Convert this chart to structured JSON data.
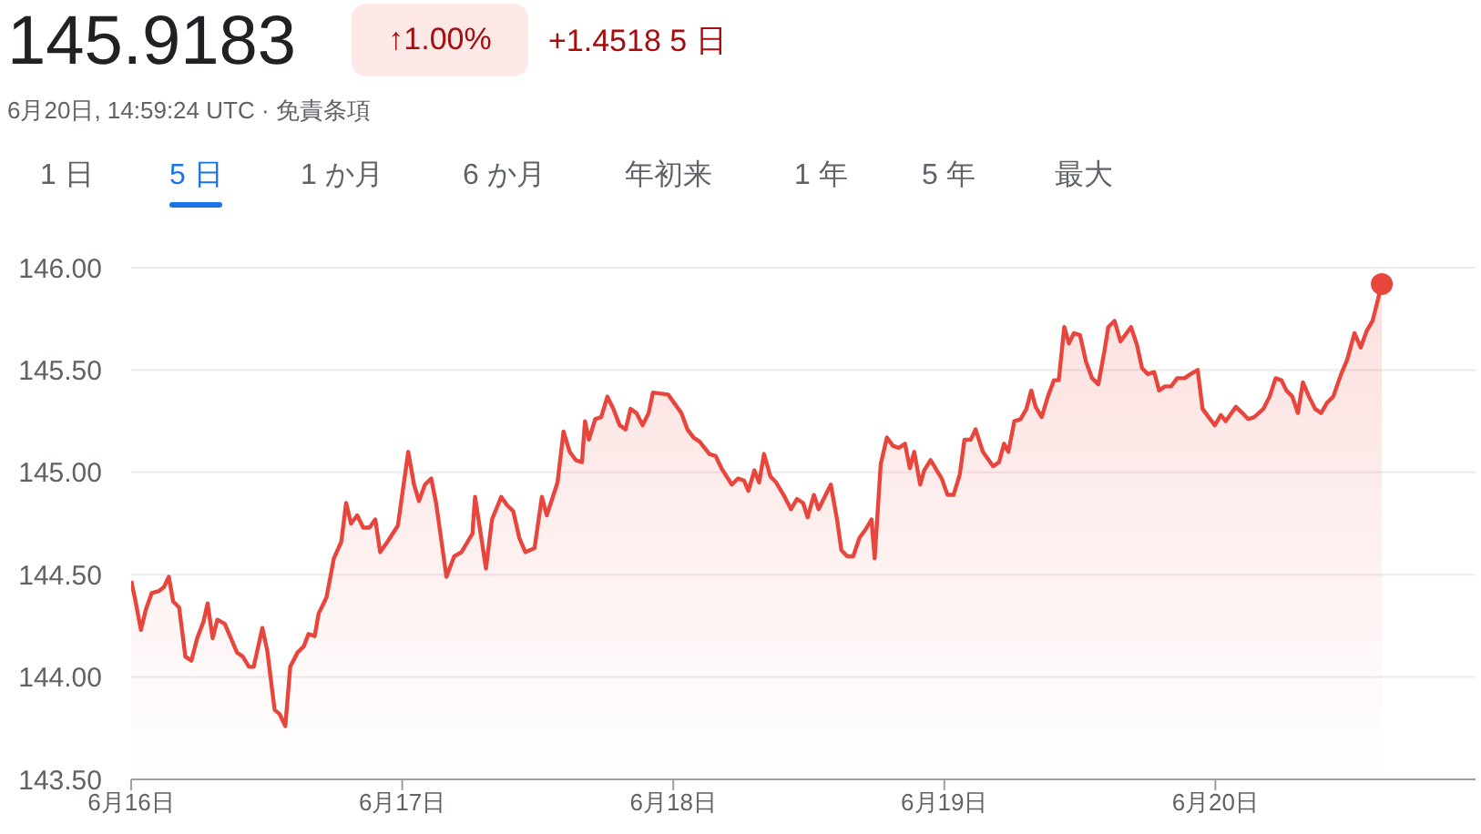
{
  "chart_data": {
    "type": "area",
    "title": "145.9183",
    "annotations": [
      "↑1.00%",
      "+1.4518 5 日",
      "6月20日, 14:59:24 UTC · 免責条項",
      "1 日",
      "5 日",
      "1 か月",
      "6 か月",
      "年初来",
      "1 年",
      "5 年",
      "最大"
    ],
    "xlim": [
      "--06-16T00:00",
      "--06-20T23:02"
    ],
    "xticks": [
      {
        "value": "--06-16",
        "label": "6月16日"
      },
      {
        "value": "--06-17",
        "label": "6月17日"
      },
      {
        "value": "--06-18",
        "label": "6月18日"
      },
      {
        "value": "--06-19",
        "label": "6月19日"
      },
      {
        "value": "--06-20",
        "label": "6月20日"
      }
    ],
    "ylim": [
      143.5,
      146.0
    ],
    "yticks": [
      {
        "value": 143.5,
        "label": "143.50"
      },
      {
        "value": 144,
        "label": "144.00"
      },
      {
        "value": 144.5,
        "label": "144.50"
      },
      {
        "value": 145,
        "label": "145.00"
      },
      {
        "value": 145.5,
        "label": "145.50"
      },
      {
        "value": 146,
        "label": "146.00"
      }
    ],
    "grid": "y",
    "marker": "none",
    "line_style": "solid",
    "series": [
      {
        "color": "#e8453c",
        "x": [
          "--06-16T00:00",
          "--06-16T00:19",
          "--06-16T00:52",
          "--06-16T01:18",
          "--06-16T01:49",
          "--06-16T02:28",
          "--06-16T02:54",
          "--06-16T03:20",
          "--06-16T03:43",
          "--06-16T04:15",
          "--06-16T04:48",
          "--06-16T05:20",
          "--06-16T05:51",
          "--06-16T06:24",
          "--06-16T06:46",
          "--06-16T07:13",
          "--06-16T07:38",
          "--06-16T08:17",
          "--06-16T08:50",
          "--06-16T09:22",
          "--06-16T09:53",
          "--06-16T10:26",
          "--06-16T10:51",
          "--06-16T11:37",
          "--06-16T12:03",
          "--06-16T12:42",
          "--06-16T13:08",
          "--06-16T13:39",
          "--06-16T14:05",
          "--06-16T14:44",
          "--06-16T15:17",
          "--06-16T15:42",
          "--06-16T16:15",
          "--06-16T16:36",
          "--06-16T17:18",
          "--06-16T17:57",
          "--06-16T18:36",
          "--06-16T19:02",
          "--06-16T19:28",
          "--06-16T20:01",
          "--06-16T20:33",
          "--06-16T21:06",
          "--06-16T21:37",
          "--06-16T22:03",
          "--06-16T22:48",
          "--06-16T23:37",
          "--06-17T00:32",
          "--06-17T01:03",
          "--06-17T01:29",
          "--06-17T02:01",
          "--06-17T02:34",
          "--06-17T03:00",
          "--06-17T03:55",
          "--06-17T04:36",
          "--06-17T05:15",
          "--06-17T06:13",
          "--06-17T06:27",
          "--06-17T07:25",
          "--06-17T07:57",
          "--06-17T08:46",
          "--06-17T09:17",
          "--06-17T09:50",
          "--06-17T10:22",
          "--06-17T10:54",
          "--06-17T11:43",
          "--06-17T12:22",
          "--06-17T12:48",
          "--06-17T13:45",
          "--06-17T14:17",
          "--06-17T14:50",
          "--06-17T15:22",
          "--06-17T15:55",
          "--06-17T16:11",
          "--06-17T16:32",
          "--06-17T17:05",
          "--06-17T17:37",
          "--06-17T18:10",
          "--06-17T18:42",
          "--06-17T19:15",
          "--06-17T19:47",
          "--06-17T20:13",
          "--06-17T20:44",
          "--06-17T21:17",
          "--06-17T21:49",
          "--06-17T22:12",
          "--06-17T23:33",
          "--06-18T00:04",
          "--06-18T00:43",
          "--06-18T01:15",
          "--06-18T01:48",
          "--06-18T02:20",
          "--06-18T03:12",
          "--06-18T03:45",
          "--06-18T04:16",
          "--06-18T05:11",
          "--06-18T05:44",
          "--06-18T06:16",
          "--06-18T06:39",
          "--06-18T07:11",
          "--06-18T07:36",
          "--06-18T08:02",
          "--06-18T08:36",
          "--06-18T09:07",
          "--06-18T09:46",
          "--06-18T10:25",
          "--06-18T10:57",
          "--06-18T11:30",
          "--06-18T11:54",
          "--06-18T12:27",
          "--06-18T12:52",
          "--06-18T13:57",
          "--06-18T14:30",
          "--06-18T14:53",
          "--06-18T15:24",
          "--06-18T15:56",
          "--06-18T16:29",
          "--06-18T17:01",
          "--06-18T17:33",
          "--06-18T17:50",
          "--06-18T18:22",
          "--06-18T18:55",
          "--06-18T19:26",
          "--06-18T19:58",
          "--06-18T20:31",
          "--06-18T20:57",
          "--06-18T21:20",
          "--06-18T21:52",
          "--06-18T22:13",
          "--06-18T22:47",
          "--06-18T23:46",
          "--06-19T00:17",
          "--06-19T00:49",
          "--06-19T01:22",
          "--06-19T01:47",
          "--06-19T02:20",
          "--06-19T02:46",
          "--06-19T03:25",
          "--06-19T03:48",
          "--06-19T04:19",
          "--06-19T04:51",
          "--06-19T05:17",
          "--06-19T05:40",
          "--06-19T06:12",
          "--06-19T06:45",
          "--06-19T07:16",
          "--06-19T07:42",
          "--06-19T08:05",
          "--06-19T08:37",
          "--06-19T09:10",
          "--06-19T09:42",
          "--06-19T10:08",
          "--06-19T10:37",
          "--06-19T11:02",
          "--06-19T11:28",
          "--06-19T12:01",
          "--06-19T12:33",
          "--06-19T13:05",
          "--06-19T13:38",
          "--06-19T14:10",
          "--06-19T14:31",
          "--06-19T15:04",
          "--06-19T15:36",
          "--06-19T16:32",
          "--06-19T17:04",
          "--06-19T17:30",
          "--06-19T18:01",
          "--06-19T18:35",
          "--06-19T19:01",
          "--06-19T19:32",
          "--06-19T20:05",
          "--06-19T20:37",
          "--06-19T21:16",
          "--06-19T21:48",
          "--06-19T22:26",
          "--06-19T22:52",
          "--06-19T23:24",
          "--06-19T23:57",
          "--06-20T00:29",
          "--06-20T00:55",
          "--06-20T01:49",
          "--06-20T02:23",
          "--06-20T02:54",
          "--06-20T03:26",
          "--06-20T04:15",
          "--06-20T04:48",
          "--06-20T05:20",
          "--06-20T05:51",
          "--06-20T06:17",
          "--06-20T06:49",
          "--06-20T07:18",
          "--06-20T07:45",
          "--06-20T08:17",
          "--06-20T08:50",
          "--06-20T09:22",
          "--06-20T09:53",
          "--06-20T10:26",
          "--06-20T11:08",
          "--06-20T11:40",
          "--06-20T12:19",
          "--06-20T12:52",
          "--06-20T13:23",
          "--06-20T13:55",
          "--06-20T14:44"
        ],
        "values": [
          144.47,
          144.39,
          144.23,
          144.33,
          144.41,
          144.42,
          144.44,
          144.49,
          144.37,
          144.34,
          144.1,
          144.08,
          144.19,
          144.27,
          144.36,
          144.19,
          144.28,
          144.26,
          144.19,
          144.12,
          144.1,
          144.05,
          144.05,
          144.24,
          144.13,
          143.84,
          143.82,
          143.76,
          144.05,
          144.12,
          144.15,
          144.21,
          144.2,
          144.31,
          144.39,
          144.58,
          144.66,
          144.85,
          144.75,
          144.79,
          144.73,
          144.73,
          144.77,
          144.61,
          144.67,
          144.74,
          145.1,
          144.94,
          144.86,
          144.94,
          144.97,
          144.85,
          144.49,
          144.59,
          144.61,
          144.7,
          144.88,
          144.53,
          144.77,
          144.88,
          144.84,
          144.81,
          144.68,
          144.61,
          144.63,
          144.88,
          144.79,
          144.95,
          145.2,
          145.1,
          145.06,
          145.05,
          145.25,
          145.16,
          145.26,
          145.27,
          145.37,
          145.31,
          145.23,
          145.21,
          145.31,
          145.29,
          145.23,
          145.29,
          145.39,
          145.38,
          145.34,
          145.29,
          145.21,
          145.17,
          145.15,
          145.09,
          145.08,
          145.02,
          144.94,
          144.97,
          144.96,
          144.91,
          145.01,
          144.95,
          145.09,
          144.98,
          144.95,
          144.89,
          144.82,
          144.87,
          144.85,
          144.78,
          144.89,
          144.82,
          144.94,
          144.77,
          144.62,
          144.59,
          144.59,
          144.68,
          144.72,
          144.77,
          144.58,
          145.04,
          145.17,
          145.13,
          145.12,
          145.14,
          145.02,
          145.1,
          144.94,
          145.01,
          145.06,
          144.97,
          144.89,
          144.89,
          144.99,
          145.16,
          145.16,
          145.21,
          145.1,
          145.07,
          145.03,
          145.05,
          145.14,
          145.1,
          145.25,
          145.26,
          145.31,
          145.4,
          145.32,
          145.27,
          145.37,
          145.45,
          145.45,
          145.71,
          145.63,
          145.68,
          145.67,
          145.54,
          145.46,
          145.43,
          145.59,
          145.71,
          145.74,
          145.64,
          145.71,
          145.62,
          145.51,
          145.48,
          145.49,
          145.4,
          145.42,
          145.42,
          145.46,
          145.46,
          145.48,
          145.5,
          145.31,
          145.27,
          145.23,
          145.28,
          145.25,
          145.32,
          145.29,
          145.26,
          145.27,
          145.31,
          145.37,
          145.46,
          145.45,
          145.4,
          145.37,
          145.29,
          145.44,
          145.37,
          145.31,
          145.29,
          145.34,
          145.37,
          145.48,
          145.55,
          145.68,
          145.61,
          145.69,
          145.74,
          145.92
        ]
      },
      {
        "type": "scatter",
        "color": "#e8453c",
        "marker": "circle",
        "x": [
          "--06-20T14:44"
        ],
        "values": [
          145.92
        ]
      }
    ]
  }
}
